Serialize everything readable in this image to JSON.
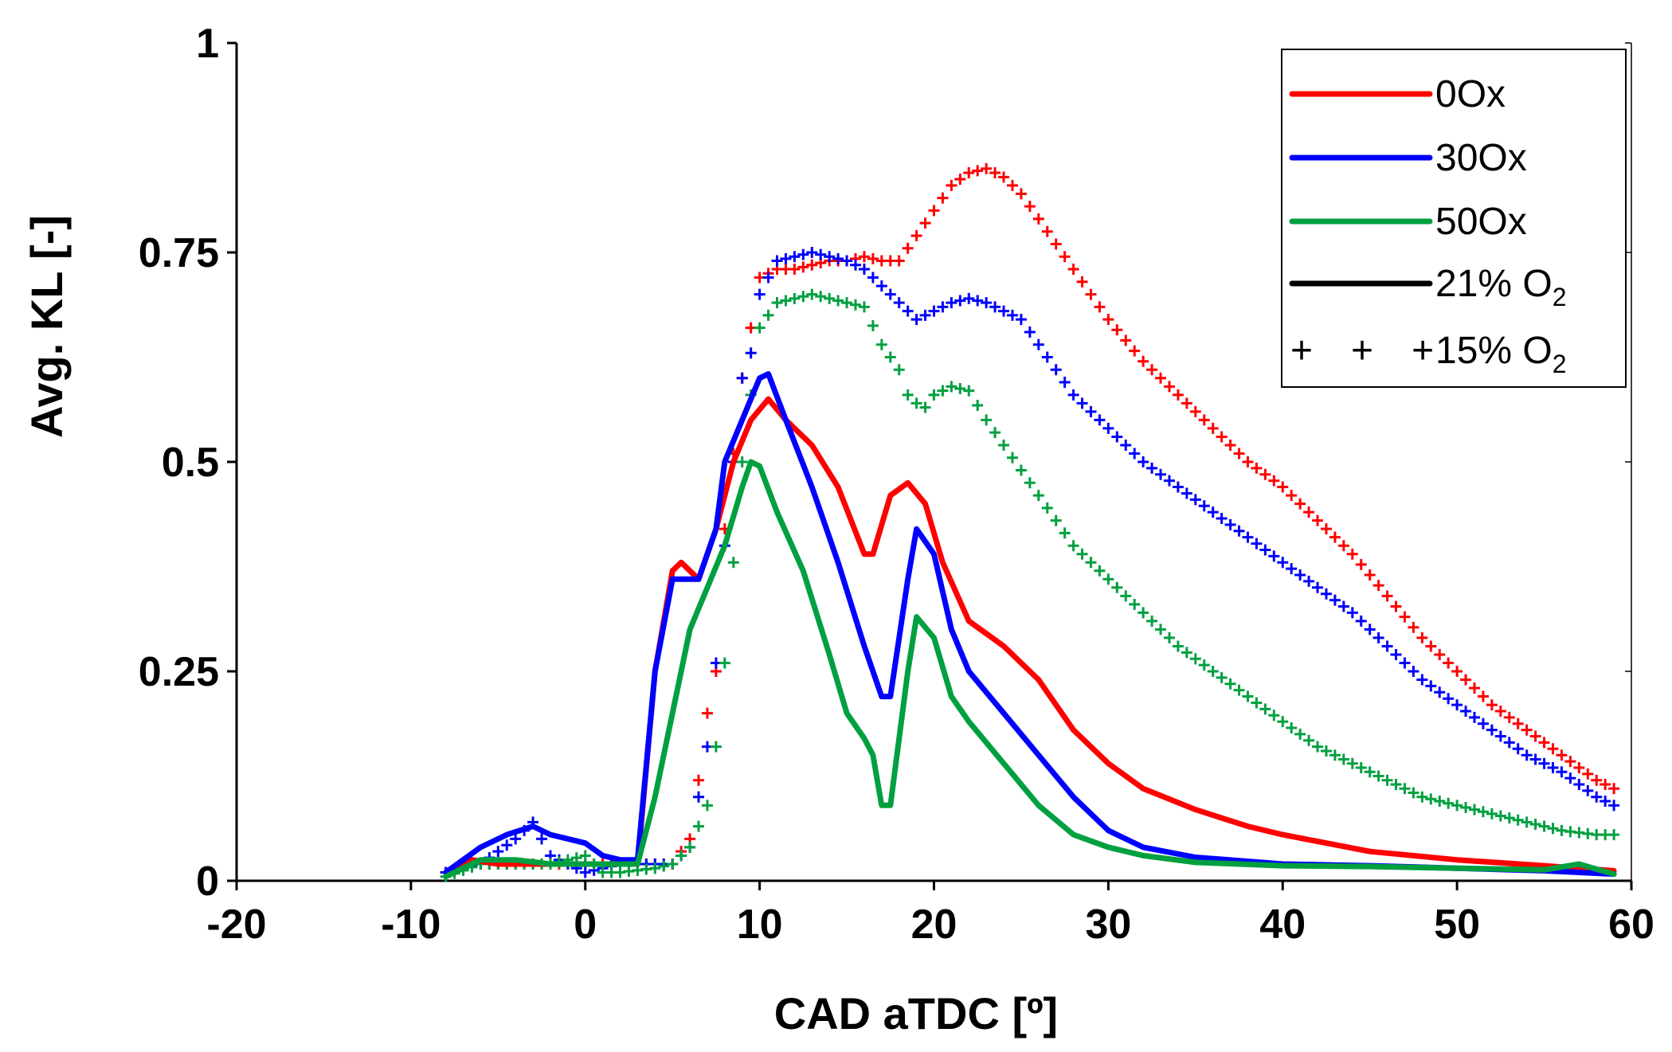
{
  "chart_data": {
    "type": "line",
    "xlabel": "CAD aTDC [º]",
    "ylabel": "Avg. KL [-]",
    "xlim": [
      -20,
      60
    ],
    "ylim": [
      0,
      1
    ],
    "x_ticks": [
      -20,
      -10,
      0,
      10,
      20,
      30,
      40,
      50,
      60
    ],
    "y_ticks": [
      0,
      0.25,
      0.5,
      0.75,
      1
    ],
    "y_tick_labels": [
      "0",
      "0.25",
      "0.5",
      "0.75",
      "1"
    ],
    "grid": false,
    "legend_position": "top-right",
    "colors": {
      "0Ox": "#ff0000",
      "30Ox": "#0000ff",
      "50Ox": "#00a040",
      "axis": "#000000"
    },
    "legend": [
      {
        "label": "0Ox",
        "style": "solid",
        "color": "#ff0000"
      },
      {
        "label": "30Ox",
        "style": "solid",
        "color": "#0000ff"
      },
      {
        "label": "50Ox",
        "style": "solid",
        "color": "#00a040"
      },
      {
        "label": "21% O",
        "sub": "2",
        "style": "solid",
        "color": "#000000"
      },
      {
        "label": "15% O",
        "sub": "2",
        "style": "plus",
        "color": "#000000",
        "marker_text": "+ + +"
      }
    ],
    "series": [
      {
        "name": "0Ox 21% O2",
        "color": "#ff0000",
        "style": "solid",
        "points": [
          [
            -8,
            0.01
          ],
          [
            -6.5,
            0.025
          ],
          [
            -5,
            0.02
          ],
          [
            -3,
            0.02
          ],
          [
            -1,
            0.02
          ],
          [
            1,
            0.02
          ],
          [
            3,
            0.02
          ],
          [
            4,
            0.25
          ],
          [
            5,
            0.37
          ],
          [
            5.5,
            0.38
          ],
          [
            6.5,
            0.36
          ],
          [
            7.5,
            0.42
          ],
          [
            8.5,
            0.5
          ],
          [
            9.5,
            0.55
          ],
          [
            10.5,
            0.575
          ],
          [
            11.5,
            0.55
          ],
          [
            13,
            0.52
          ],
          [
            14.5,
            0.47
          ],
          [
            16,
            0.39
          ],
          [
            16.5,
            0.39
          ],
          [
            17.5,
            0.46
          ],
          [
            18.5,
            0.475
          ],
          [
            19.5,
            0.45
          ],
          [
            20.5,
            0.38
          ],
          [
            22,
            0.31
          ],
          [
            24,
            0.28
          ],
          [
            26,
            0.24
          ],
          [
            28,
            0.18
          ],
          [
            30,
            0.14
          ],
          [
            32,
            0.11
          ],
          [
            35,
            0.085
          ],
          [
            38,
            0.065
          ],
          [
            40,
            0.055
          ],
          [
            45,
            0.035
          ],
          [
            50,
            0.025
          ],
          [
            55,
            0.018
          ],
          [
            59,
            0.012
          ]
        ]
      },
      {
        "name": "30Ox 21% O2",
        "color": "#0000ff",
        "style": "solid",
        "points": [
          [
            -8,
            0.01
          ],
          [
            -6,
            0.04
          ],
          [
            -4.5,
            0.055
          ],
          [
            -3,
            0.065
          ],
          [
            -2,
            0.055
          ],
          [
            -1,
            0.05
          ],
          [
            0,
            0.045
          ],
          [
            1,
            0.03
          ],
          [
            2,
            0.025
          ],
          [
            3,
            0.025
          ],
          [
            4,
            0.25
          ],
          [
            5,
            0.36
          ],
          [
            5.5,
            0.36
          ],
          [
            6.5,
            0.36
          ],
          [
            7.5,
            0.42
          ],
          [
            8,
            0.5
          ],
          [
            9,
            0.55
          ],
          [
            10,
            0.6
          ],
          [
            10.5,
            0.605
          ],
          [
            11.5,
            0.55
          ],
          [
            13,
            0.47
          ],
          [
            14.5,
            0.38
          ],
          [
            16,
            0.28
          ],
          [
            17,
            0.22
          ],
          [
            17.5,
            0.22
          ],
          [
            18.5,
            0.36
          ],
          [
            19,
            0.42
          ],
          [
            20,
            0.39
          ],
          [
            21,
            0.3
          ],
          [
            22,
            0.25
          ],
          [
            24,
            0.2
          ],
          [
            26,
            0.15
          ],
          [
            28,
            0.1
          ],
          [
            30,
            0.06
          ],
          [
            32,
            0.04
          ],
          [
            35,
            0.028
          ],
          [
            40,
            0.02
          ],
          [
            45,
            0.018
          ],
          [
            50,
            0.015
          ],
          [
            55,
            0.012
          ],
          [
            59,
            0.008
          ]
        ]
      },
      {
        "name": "50Ox 21% O2",
        "color": "#00a040",
        "style": "solid",
        "points": [
          [
            -8,
            0.005
          ],
          [
            -6,
            0.025
          ],
          [
            -4,
            0.025
          ],
          [
            -2,
            0.02
          ],
          [
            0,
            0.02
          ],
          [
            2,
            0.02
          ],
          [
            3,
            0.02
          ],
          [
            4,
            0.1
          ],
          [
            5,
            0.2
          ],
          [
            6,
            0.3
          ],
          [
            7,
            0.35
          ],
          [
            8,
            0.4
          ],
          [
            9,
            0.47
          ],
          [
            9.5,
            0.5
          ],
          [
            10,
            0.495
          ],
          [
            11,
            0.44
          ],
          [
            12.5,
            0.37
          ],
          [
            14,
            0.27
          ],
          [
            15,
            0.2
          ],
          [
            16,
            0.17
          ],
          [
            16.5,
            0.15
          ],
          [
            17,
            0.09
          ],
          [
            17.5,
            0.09
          ],
          [
            18.5,
            0.25
          ],
          [
            19,
            0.315
          ],
          [
            20,
            0.29
          ],
          [
            21,
            0.22
          ],
          [
            22,
            0.19
          ],
          [
            24,
            0.14
          ],
          [
            26,
            0.09
          ],
          [
            28,
            0.055
          ],
          [
            30,
            0.04
          ],
          [
            32,
            0.03
          ],
          [
            35,
            0.022
          ],
          [
            40,
            0.018
          ],
          [
            45,
            0.017
          ],
          [
            50,
            0.015
          ],
          [
            55,
            0.013
          ],
          [
            57,
            0.02
          ],
          [
            59,
            0.008
          ]
        ]
      },
      {
        "name": "0Ox 15% O2",
        "color": "#ff0000",
        "style": "plus",
        "points": [
          [
            -8,
            0.01
          ],
          [
            -6,
            0.02
          ],
          [
            -4,
            0.02
          ],
          [
            -2,
            0.02
          ],
          [
            0,
            0.02
          ],
          [
            2,
            0.02
          ],
          [
            4,
            0.02
          ],
          [
            5,
            0.02
          ],
          [
            6,
            0.05
          ],
          [
            6.5,
            0.12
          ],
          [
            7,
            0.2
          ],
          [
            7.5,
            0.25
          ],
          [
            8,
            0.42
          ],
          [
            8.5,
            0.51
          ],
          [
            9,
            0.6
          ],
          [
            9.5,
            0.66
          ],
          [
            10,
            0.72
          ],
          [
            11,
            0.73
          ],
          [
            12,
            0.73
          ],
          [
            13,
            0.735
          ],
          [
            14,
            0.74
          ],
          [
            15,
            0.74
          ],
          [
            16,
            0.745
          ],
          [
            17,
            0.74
          ],
          [
            18,
            0.74
          ],
          [
            19,
            0.77
          ],
          [
            20,
            0.8
          ],
          [
            21,
            0.83
          ],
          [
            22,
            0.845
          ],
          [
            23,
            0.85
          ],
          [
            24,
            0.84
          ],
          [
            25,
            0.82
          ],
          [
            26,
            0.79
          ],
          [
            28,
            0.73
          ],
          [
            30,
            0.67
          ],
          [
            32,
            0.62
          ],
          [
            34,
            0.58
          ],
          [
            36,
            0.54
          ],
          [
            38,
            0.5
          ],
          [
            40,
            0.47
          ],
          [
            42,
            0.43
          ],
          [
            44,
            0.39
          ],
          [
            46,
            0.34
          ],
          [
            48,
            0.29
          ],
          [
            50,
            0.25
          ],
          [
            52,
            0.21
          ],
          [
            54,
            0.18
          ],
          [
            56,
            0.15
          ],
          [
            58,
            0.12
          ],
          [
            59,
            0.11
          ]
        ]
      },
      {
        "name": "30Ox 15% O2",
        "color": "#0000ff",
        "style": "plus",
        "points": [
          [
            -8,
            0.01
          ],
          [
            -6,
            0.02
          ],
          [
            -4,
            0.05
          ],
          [
            -3,
            0.07
          ],
          [
            -2,
            0.03
          ],
          [
            -1,
            0.02
          ],
          [
            0,
            0.01
          ],
          [
            2,
            0.02
          ],
          [
            4,
            0.02
          ],
          [
            5,
            0.02
          ],
          [
            6,
            0.04
          ],
          [
            7,
            0.16
          ],
          [
            7.5,
            0.26
          ],
          [
            8,
            0.4
          ],
          [
            8.5,
            0.5
          ],
          [
            9,
            0.6
          ],
          [
            9.5,
            0.63
          ],
          [
            10,
            0.7
          ],
          [
            11,
            0.74
          ],
          [
            12,
            0.745
          ],
          [
            13,
            0.75
          ],
          [
            14,
            0.745
          ],
          [
            15,
            0.74
          ],
          [
            16,
            0.73
          ],
          [
            17,
            0.71
          ],
          [
            18,
            0.69
          ],
          [
            19,
            0.67
          ],
          [
            20,
            0.68
          ],
          [
            21,
            0.69
          ],
          [
            22,
            0.695
          ],
          [
            23,
            0.69
          ],
          [
            24,
            0.68
          ],
          [
            25,
            0.67
          ],
          [
            26,
            0.64
          ],
          [
            28,
            0.58
          ],
          [
            30,
            0.54
          ],
          [
            32,
            0.5
          ],
          [
            34,
            0.47
          ],
          [
            36,
            0.44
          ],
          [
            38,
            0.41
          ],
          [
            40,
            0.38
          ],
          [
            42,
            0.35
          ],
          [
            44,
            0.32
          ],
          [
            46,
            0.28
          ],
          [
            48,
            0.24
          ],
          [
            50,
            0.21
          ],
          [
            52,
            0.18
          ],
          [
            54,
            0.15
          ],
          [
            56,
            0.13
          ],
          [
            58,
            0.1
          ],
          [
            59,
            0.09
          ]
        ]
      },
      {
        "name": "50Ox 15% O2",
        "color": "#00a040",
        "style": "plus",
        "points": [
          [
            -8,
            0.005
          ],
          [
            -6,
            0.02
          ],
          [
            -4,
            0.02
          ],
          [
            -2,
            0.02
          ],
          [
            0,
            0.03
          ],
          [
            1,
            0.01
          ],
          [
            2,
            0.01
          ],
          [
            4,
            0.015
          ],
          [
            5,
            0.02
          ],
          [
            6,
            0.04
          ],
          [
            7,
            0.09
          ],
          [
            7.5,
            0.16
          ],
          [
            8,
            0.26
          ],
          [
            8.5,
            0.38
          ],
          [
            9,
            0.5
          ],
          [
            10,
            0.66
          ],
          [
            11,
            0.69
          ],
          [
            12,
            0.695
          ],
          [
            13,
            0.7
          ],
          [
            14,
            0.695
          ],
          [
            15,
            0.69
          ],
          [
            16,
            0.685
          ],
          [
            17,
            0.64
          ],
          [
            18,
            0.61
          ],
          [
            18.5,
            0.58
          ],
          [
            19,
            0.57
          ],
          [
            19.5,
            0.565
          ],
          [
            20,
            0.58
          ],
          [
            21,
            0.59
          ],
          [
            22,
            0.585
          ],
          [
            23,
            0.55
          ],
          [
            24,
            0.52
          ],
          [
            25,
            0.49
          ],
          [
            26,
            0.46
          ],
          [
            28,
            0.4
          ],
          [
            30,
            0.36
          ],
          [
            32,
            0.32
          ],
          [
            34,
            0.28
          ],
          [
            36,
            0.25
          ],
          [
            38,
            0.22
          ],
          [
            40,
            0.19
          ],
          [
            42,
            0.16
          ],
          [
            44,
            0.14
          ],
          [
            46,
            0.12
          ],
          [
            48,
            0.1
          ],
          [
            50,
            0.09
          ],
          [
            52,
            0.08
          ],
          [
            54,
            0.07
          ],
          [
            56,
            0.06
          ],
          [
            58,
            0.055
          ],
          [
            59,
            0.055
          ]
        ]
      }
    ]
  }
}
